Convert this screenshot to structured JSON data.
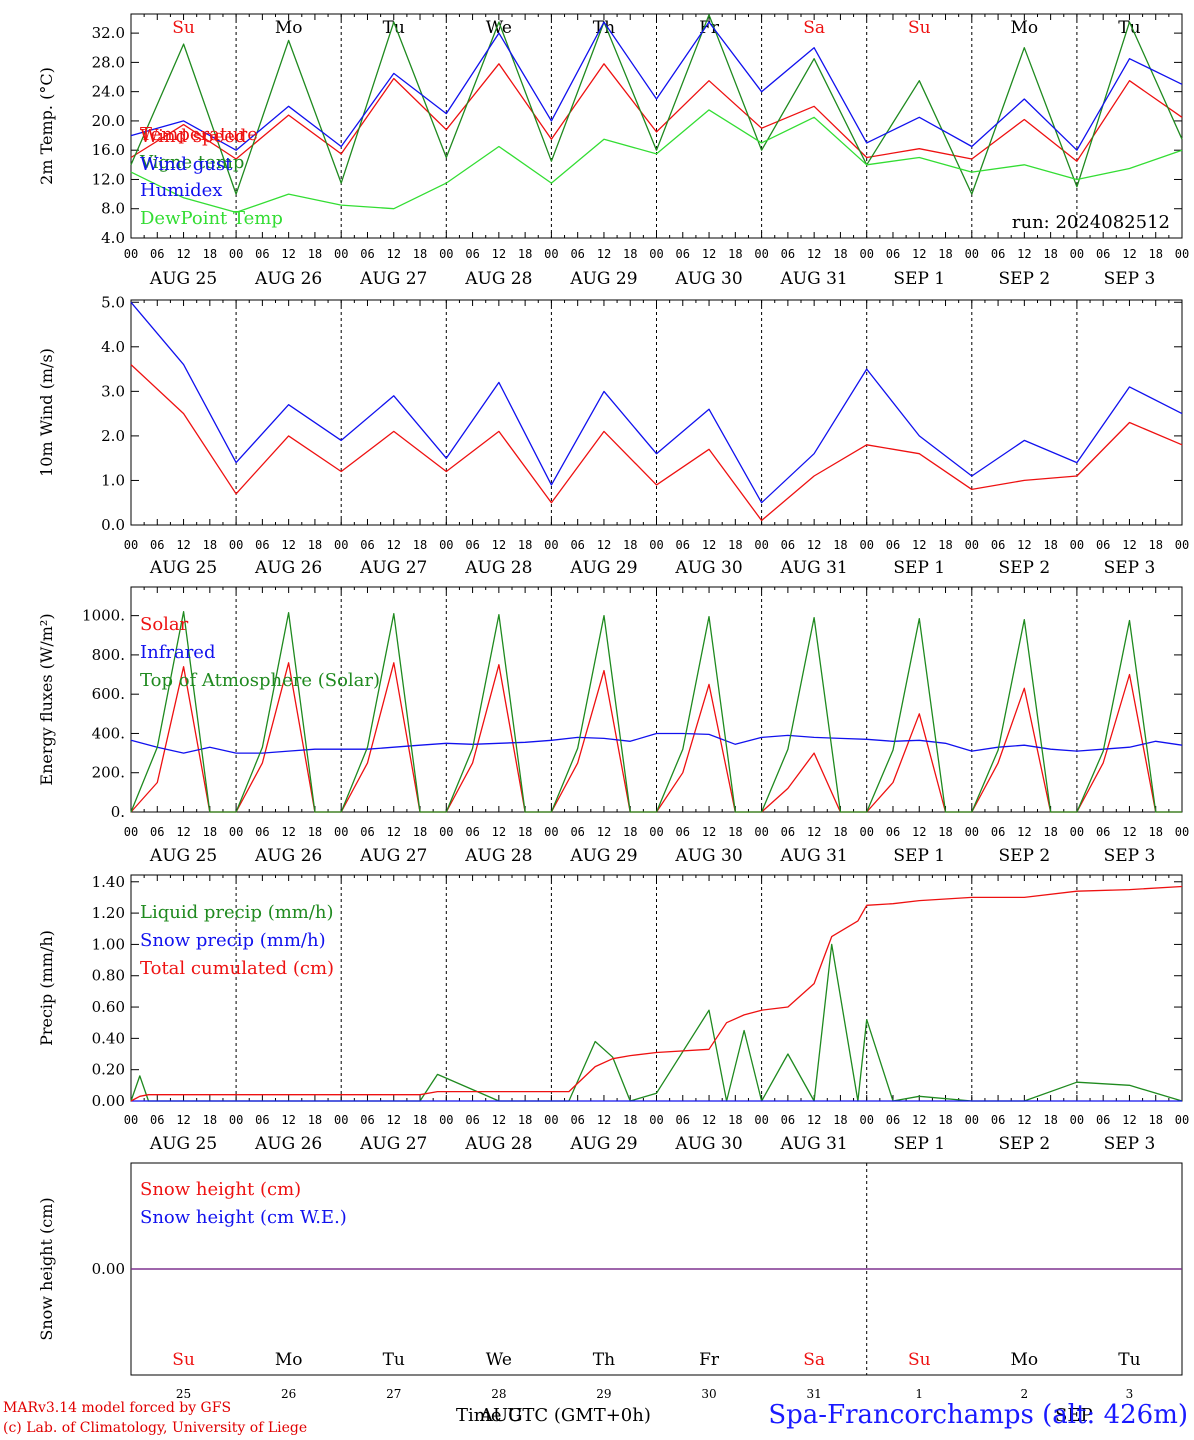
{
  "colors": {
    "red": "#ee1111",
    "green": "#1f8a1f",
    "blue": "#1111ee",
    "lightgreen": "#33dd33",
    "purple": "#7a2a8a",
    "black": "#000000"
  },
  "days": {
    "labels": [
      "AUG 25",
      "AUG 26",
      "AUG 27",
      "AUG 28",
      "AUG 29",
      "AUG 30",
      "AUG 31",
      "SEP  1",
      "SEP  2",
      "SEP  3"
    ],
    "hours": [
      "00",
      "06",
      "12",
      "18"
    ],
    "weekdays": [
      "Su",
      "Mo",
      "Tu",
      "We",
      "Th",
      "Fr",
      "Sa",
      "Su",
      "Mo",
      "Tu"
    ],
    "weekday_colors": [
      "red",
      "black",
      "black",
      "black",
      "black",
      "black",
      "red",
      "red",
      "black",
      "black"
    ],
    "day_numbers": [
      "25",
      "26",
      "27",
      "28",
      "29",
      "30",
      "31",
      "1",
      "2",
      "3"
    ]
  },
  "bottom": {
    "axis_title": "Time UTC (GMT+0h)",
    "month_overlay_1": "AUG",
    "month_overlay_2": "SEP",
    "credit_line_1": "MARv3.14 model forced by GFS",
    "credit_line_2": "(c) Lab. of Climatology, University of Liege",
    "station": "Spa-Francorchamps (alt: 426m)"
  },
  "chart_data": [
    {
      "type": "line",
      "ylabel": "2m Temp. (°C)",
      "ylim": [
        4.0,
        34.0
      ],
      "yticks": [
        "4.0",
        "8.0",
        "12.0",
        "16.0",
        "20.0",
        "24.0",
        "28.0",
        "32.0"
      ],
      "ytick_values": [
        4,
        8,
        12,
        16,
        20,
        24,
        28,
        32
      ],
      "x_hours": [
        0,
        12,
        24,
        36,
        48,
        60,
        72,
        84,
        96,
        108,
        120,
        132,
        144,
        156,
        168,
        180,
        192,
        204,
        216,
        228,
        240
      ],
      "annotation": "run: 2024082512",
      "series": [
        {
          "name": "Temperature",
          "color": "red",
          "values": [
            15.0,
            19.5,
            14.8,
            20.8,
            15.5,
            25.8,
            18.8,
            27.8,
            17.5,
            27.8,
            18.5,
            25.5,
            19.0,
            22.0,
            15.0,
            16.2,
            14.8,
            20.2,
            14.5,
            25.5,
            20.5
          ]
        },
        {
          "name": "Vigne temp",
          "color": "green",
          "values": [
            14.0,
            30.5,
            10.0,
            31.0,
            11.5,
            33.5,
            15.0,
            33.5,
            14.5,
            33.5,
            16.0,
            34.5,
            16.0,
            28.5,
            14.0,
            25.5,
            10.0,
            30.0,
            11.0,
            33.5,
            17.5
          ]
        },
        {
          "name": "Humidex",
          "color": "blue",
          "values": [
            18.0,
            20.0,
            16.0,
            22.0,
            16.5,
            26.5,
            21.0,
            32.0,
            20.0,
            33.5,
            23.0,
            33.5,
            24.0,
            30.0,
            17.0,
            20.5,
            16.5,
            23.0,
            16.0,
            28.5,
            25.0
          ]
        },
        {
          "name": "DewPoint Temp",
          "color": "lightgreen",
          "values": [
            13.0,
            9.5,
            7.5,
            10.0,
            8.5,
            8.0,
            11.5,
            16.5,
            11.5,
            17.5,
            15.5,
            21.5,
            17.0,
            20.5,
            14.0,
            15.0,
            13.0,
            14.0,
            12.0,
            13.5,
            16.0
          ]
        }
      ]
    },
    {
      "type": "line",
      "ylabel": "10m Wind (m/s)",
      "ylim": [
        0.0,
        5.0
      ],
      "yticks": [
        "0.0",
        "1.0",
        "2.0",
        "3.0",
        "4.0",
        "5.0"
      ],
      "ytick_values": [
        0,
        1,
        2,
        3,
        4,
        5
      ],
      "x_hours": [
        0,
        12,
        24,
        36,
        48,
        60,
        72,
        84,
        96,
        108,
        120,
        132,
        144,
        156,
        168,
        180,
        192,
        204,
        216,
        228,
        240
      ],
      "series": [
        {
          "name": "Wind speed",
          "color": "red",
          "values": [
            3.6,
            2.5,
            0.7,
            2.0,
            1.2,
            2.1,
            1.2,
            2.1,
            0.5,
            2.1,
            0.9,
            1.7,
            0.1,
            1.1,
            1.8,
            1.6,
            0.8,
            1.0,
            1.1,
            2.3,
            1.8
          ]
        },
        {
          "name": "Wind gust",
          "color": "blue",
          "values": [
            5.0,
            3.6,
            1.4,
            2.7,
            1.9,
            2.9,
            1.5,
            3.2,
            0.9,
            3.0,
            1.6,
            2.6,
            0.5,
            1.6,
            3.5,
            2.0,
            1.1,
            1.9,
            1.4,
            3.1,
            2.5
          ]
        }
      ]
    },
    {
      "type": "line",
      "ylabel": "Energy fluxes (W/m²)",
      "ylim": [
        0,
        1100
      ],
      "yticks": [
        "0.",
        "200.",
        "400.",
        "600.",
        "800.",
        "1000."
      ],
      "ytick_values": [
        0,
        200,
        400,
        600,
        800,
        1000
      ],
      "x_hours": [
        0,
        6,
        12,
        18,
        24,
        30,
        36,
        42,
        48,
        54,
        60,
        66,
        72,
        78,
        84,
        90,
        96,
        102,
        108,
        114,
        120,
        126,
        132,
        138,
        144,
        150,
        156,
        162,
        168,
        174,
        180,
        186,
        192,
        198,
        204,
        210,
        216,
        222,
        228,
        234,
        240
      ],
      "series": [
        {
          "name": "Solar",
          "color": "red",
          "values": [
            0,
            150,
            740,
            0,
            0,
            250,
            760,
            0,
            0,
            250,
            760,
            0,
            0,
            250,
            750,
            0,
            0,
            250,
            720,
            0,
            0,
            200,
            650,
            0,
            0,
            120,
            300,
            0,
            0,
            150,
            500,
            0,
            0,
            250,
            630,
            0,
            0,
            250,
            700,
            0,
            0
          ]
        },
        {
          "name": "Infrared",
          "color": "blue",
          "values": [
            365,
            330,
            300,
            330,
            300,
            300,
            310,
            320,
            320,
            320,
            330,
            340,
            350,
            345,
            350,
            355,
            365,
            380,
            375,
            360,
            400,
            400,
            395,
            345,
            380,
            390,
            380,
            375,
            370,
            360,
            365,
            350,
            310,
            330,
            340,
            320,
            310,
            320,
            330,
            360,
            340
          ]
        },
        {
          "name": "Top of Atmosphere (Solar)",
          "color": "green",
          "values": [
            0,
            330,
            1020,
            0,
            0,
            330,
            1015,
            0,
            0,
            330,
            1010,
            0,
            0,
            325,
            1005,
            0,
            0,
            325,
            1000,
            0,
            0,
            320,
            995,
            0,
            0,
            320,
            990,
            0,
            0,
            315,
            985,
            0,
            0,
            315,
            980,
            0,
            0,
            310,
            975,
            0,
            0
          ]
        }
      ]
    },
    {
      "type": "line",
      "ylabel": "Precip (mm/h)",
      "ylim": [
        0.0,
        1.4
      ],
      "yticks": [
        "0.00",
        "0.20",
        "0.40",
        "0.60",
        "0.80",
        "1.00",
        "1.20",
        "1.40"
      ],
      "ytick_values": [
        0,
        0.2,
        0.4,
        0.6,
        0.8,
        1.0,
        1.2,
        1.4
      ],
      "x_hours": [
        0,
        2,
        4,
        12,
        24,
        36,
        48,
        66,
        70,
        84,
        100,
        106,
        110,
        114,
        120,
        132,
        136,
        140,
        144,
        150,
        156,
        160,
        166,
        168,
        174,
        180,
        192,
        204,
        216,
        228,
        240
      ],
      "series": [
        {
          "name": "Liquid precip (mm/h)",
          "color": "green",
          "values": [
            0.0,
            0.16,
            0.0,
            0.0,
            0.0,
            0.0,
            0.0,
            0.0,
            0.17,
            0.0,
            0.0,
            0.38,
            0.28,
            0.0,
            0.05,
            0.58,
            0.0,
            0.45,
            0.0,
            0.3,
            0.0,
            1.0,
            0.0,
            0.52,
            0.0,
            0.03,
            0.0,
            0.0,
            0.12,
            0.1,
            0.0
          ]
        },
        {
          "name": "Snow precip (mm/h)",
          "color": "blue",
          "values": [
            0,
            0,
            0,
            0,
            0,
            0,
            0,
            0,
            0,
            0,
            0,
            0,
            0,
            0,
            0,
            0,
            0,
            0,
            0,
            0,
            0,
            0,
            0,
            0,
            0,
            0,
            0,
            0,
            0,
            0,
            0
          ]
        },
        {
          "name": "Total cumulated (cm)",
          "color": "red",
          "values": [
            0.0,
            0.03,
            0.04,
            0.04,
            0.04,
            0.04,
            0.04,
            0.04,
            0.06,
            0.06,
            0.06,
            0.22,
            0.27,
            0.29,
            0.31,
            0.33,
            0.5,
            0.55,
            0.58,
            0.6,
            0.75,
            1.05,
            1.15,
            1.25,
            1.26,
            1.28,
            1.3,
            1.3,
            1.34,
            1.35,
            1.37
          ]
        }
      ]
    },
    {
      "type": "line",
      "ylabel": "Snow height (cm)",
      "ylim": [
        -1.0,
        1.0
      ],
      "yticks": [
        "0.00"
      ],
      "ytick_values": [
        0
      ],
      "x_hours": [
        0,
        240
      ],
      "series": [
        {
          "name": "Snow height (cm)",
          "color": "red",
          "values": [
            0.0,
            0.0
          ]
        },
        {
          "name": "Snow height (cm W.E.)",
          "color": "blue",
          "values": [
            0.0,
            0.0
          ]
        }
      ]
    }
  ]
}
